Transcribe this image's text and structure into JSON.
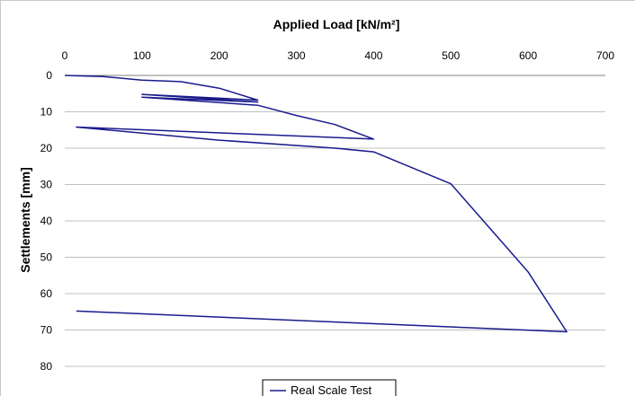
{
  "chart_data": {
    "type": "line",
    "xlabel": "Applied Load [kN/m²]",
    "ylabel": "Settlements [mm]",
    "xlim": [
      0,
      700
    ],
    "ylim": [
      0,
      80
    ],
    "x_ticks": [
      0,
      100,
      200,
      300,
      400,
      500,
      600,
      700
    ],
    "y_ticks": [
      0,
      10,
      20,
      30,
      40,
      50,
      60,
      70,
      80
    ],
    "x_axis_position": "top",
    "y_axis_inverted": true,
    "grid": "horizontal",
    "legend_position": "bottom",
    "series": [
      {
        "name": "Real Scale Test",
        "color": "#1a1a8c",
        "x": [
          0,
          50,
          100,
          150,
          200,
          250,
          100,
          250,
          100,
          250,
          300,
          350,
          400,
          15,
          400,
          15,
          200,
          350,
          400,
          500,
          600,
          650,
          15
        ],
        "y": [
          0,
          0.3,
          1.3,
          1.7,
          3.5,
          6.8,
          5.2,
          7.3,
          6.0,
          8.2,
          11.0,
          13.5,
          17.5,
          14.2,
          17.5,
          14.2,
          17.8,
          20.0,
          21.0,
          29.8,
          54.0,
          70.5,
          64.8
        ]
      }
    ]
  }
}
